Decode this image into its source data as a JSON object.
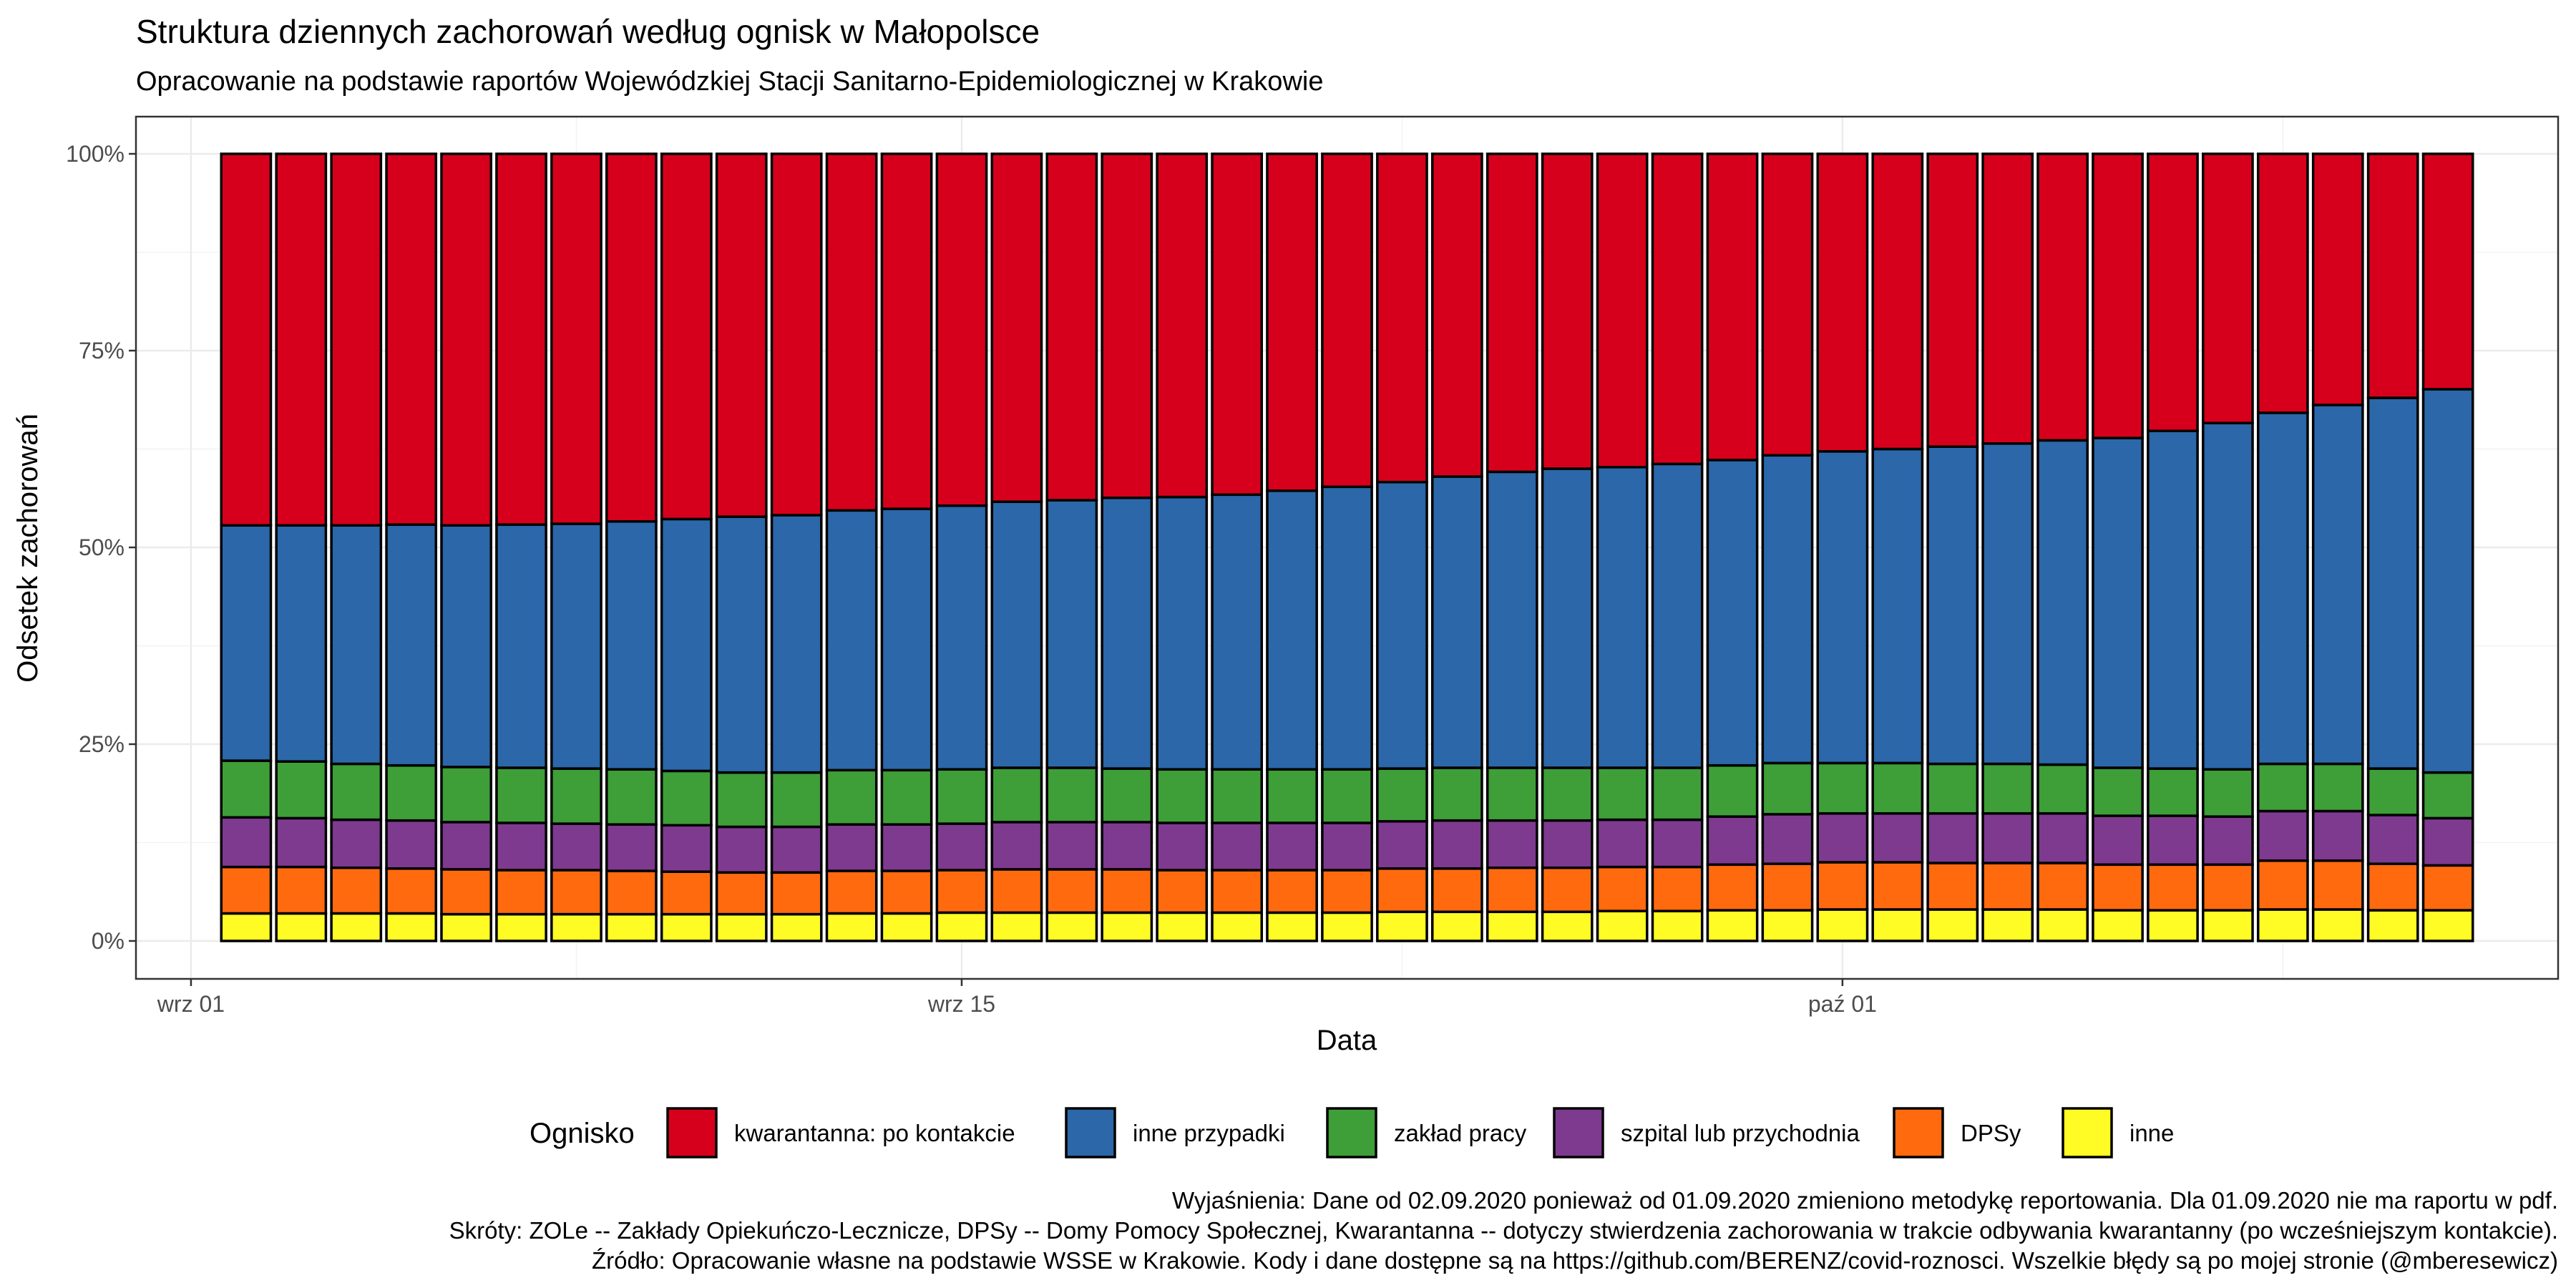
{
  "chart_data": {
    "type": "bar",
    "stacked": true,
    "title": "Struktura dziennych zachorowań według ognisk w Małopolsce",
    "subtitle": "Opracowanie na podstawie raportów Wojewódzkiej Stacji Sanitarno-Epidemiologicznej w Krakowie",
    "xlabel": "Data",
    "ylabel": "Odsetek zachorowań",
    "ylim": [
      0,
      100
    ],
    "y_ticks": [
      "0%",
      "25%",
      "50%",
      "75%",
      "100%"
    ],
    "x_ticks": [
      {
        "date": "2020-09-01",
        "label": "wrz 01"
      },
      {
        "date": "2020-09-15",
        "label": "wrz 15"
      },
      {
        "date": "2020-10-01",
        "label": "paź 01"
      }
    ],
    "x_range": [
      "2020-08-31",
      "2020-10-14"
    ],
    "grid": true,
    "legend": {
      "title": "Ognisko",
      "position": "bottom",
      "items": [
        {
          "key": "kwarantanna",
          "label": "kwarantanna: po kontakcie",
          "color": "#D7001C"
        },
        {
          "key": "inne_przypadki",
          "label": "inne przypadki",
          "color": "#2B67A9"
        },
        {
          "key": "zaklad_pracy",
          "label": "zakład pracy",
          "color": "#3E9E38"
        },
        {
          "key": "szpital",
          "label": "szpital lub przychodnia",
          "color": "#7E3A8F"
        },
        {
          "key": "dpsy",
          "label": "DPSy",
          "color": "#FF6A0E"
        },
        {
          "key": "inne",
          "label": "inne",
          "color": "#FFFB24"
        }
      ]
    },
    "stack_order": [
      "inne",
      "dpsy",
      "szpital",
      "zaklad_pracy",
      "inne_przypadki",
      "kwarantanna"
    ],
    "categories": [
      "2020-09-02",
      "2020-09-03",
      "2020-09-04",
      "2020-09-05",
      "2020-09-06",
      "2020-09-07",
      "2020-09-08",
      "2020-09-09",
      "2020-09-10",
      "2020-09-11",
      "2020-09-12",
      "2020-09-13",
      "2020-09-14",
      "2020-09-15",
      "2020-09-16",
      "2020-09-17",
      "2020-09-18",
      "2020-09-19",
      "2020-09-20",
      "2020-09-21",
      "2020-09-22",
      "2020-09-23",
      "2020-09-24",
      "2020-09-25",
      "2020-09-26",
      "2020-09-27",
      "2020-09-28",
      "2020-09-29",
      "2020-09-30",
      "2020-10-01",
      "2020-10-02",
      "2020-10-03",
      "2020-10-04",
      "2020-10-05",
      "2020-10-06",
      "2020-10-07",
      "2020-10-08",
      "2020-10-09",
      "2020-10-10",
      "2020-10-11",
      "2020-10-12"
    ],
    "series": [
      {
        "key": "inne",
        "name": "inne",
        "values": [
          3.5,
          3.5,
          3.5,
          3.5,
          3.4,
          3.4,
          3.4,
          3.4,
          3.4,
          3.4,
          3.4,
          3.5,
          3.5,
          3.6,
          3.6,
          3.6,
          3.6,
          3.6,
          3.6,
          3.6,
          3.6,
          3.7,
          3.7,
          3.7,
          3.7,
          3.8,
          3.8,
          3.9,
          3.9,
          4.0,
          4.0,
          4.0,
          4.0,
          4.0,
          3.9,
          3.9,
          3.9,
          4.0,
          4.0,
          3.9,
          3.9
        ]
      },
      {
        "key": "dpsy",
        "name": "DPSy",
        "values": [
          5.9,
          5.9,
          5.8,
          5.7,
          5.7,
          5.6,
          5.6,
          5.5,
          5.4,
          5.3,
          5.3,
          5.4,
          5.4,
          5.4,
          5.5,
          5.5,
          5.5,
          5.4,
          5.4,
          5.4,
          5.4,
          5.5,
          5.5,
          5.6,
          5.6,
          5.6,
          5.6,
          5.8,
          5.9,
          6.0,
          6.0,
          5.9,
          5.9,
          5.9,
          5.8,
          5.8,
          5.8,
          6.2,
          6.2,
          5.9,
          5.7
        ]
      },
      {
        "key": "szpital",
        "name": "szpital lub przychodnia",
        "values": [
          6.3,
          6.2,
          6.1,
          6.1,
          6.0,
          6.0,
          5.9,
          5.9,
          5.9,
          5.8,
          5.8,
          5.9,
          5.9,
          5.9,
          6.0,
          6.0,
          6.0,
          6.0,
          6.0,
          6.0,
          6.0,
          6.0,
          6.1,
          6.0,
          6.0,
          6.0,
          6.0,
          6.1,
          6.3,
          6.2,
          6.2,
          6.3,
          6.3,
          6.3,
          6.2,
          6.2,
          6.1,
          6.3,
          6.3,
          6.2,
          6.0
        ]
      },
      {
        "key": "zaklad_pracy",
        "name": "zakład pracy",
        "values": [
          7.2,
          7.2,
          7.1,
          7.0,
          7.0,
          7.0,
          7.0,
          7.0,
          6.9,
          6.9,
          6.9,
          6.9,
          6.9,
          6.9,
          6.9,
          6.9,
          6.8,
          6.8,
          6.8,
          6.8,
          6.8,
          6.7,
          6.7,
          6.7,
          6.7,
          6.6,
          6.6,
          6.5,
          6.5,
          6.4,
          6.4,
          6.3,
          6.3,
          6.2,
          6.1,
          6.0,
          6.0,
          6.0,
          6.0,
          5.9,
          5.8
        ]
      },
      {
        "key": "inne_przypadki",
        "name": "inne przypadki",
        "values": [
          29.9,
          30.0,
          30.3,
          30.6,
          30.7,
          30.9,
          31.1,
          31.5,
          32.0,
          32.5,
          32.7,
          33.0,
          33.2,
          33.5,
          33.8,
          34.0,
          34.4,
          34.6,
          34.9,
          35.4,
          35.9,
          36.4,
          37.0,
          37.6,
          38.0,
          38.2,
          38.6,
          38.8,
          39.1,
          39.6,
          39.9,
          40.3,
          40.7,
          41.2,
          41.9,
          42.9,
          44.0,
          44.6,
          45.6,
          47.1,
          48.7
        ]
      },
      {
        "key": "kwarantanna",
        "name": "kwarantanna: po kontakcie",
        "values": [
          47.2,
          47.2,
          47.2,
          47.1,
          47.2,
          47.1,
          47.0,
          46.7,
          46.4,
          46.1,
          45.9,
          45.3,
          45.1,
          44.7,
          44.2,
          44.0,
          43.7,
          43.6,
          43.3,
          42.8,
          42.3,
          41.7,
          41.0,
          40.4,
          40.0,
          39.8,
          39.4,
          38.9,
          38.3,
          37.8,
          37.5,
          37.2,
          36.8,
          36.4,
          36.1,
          35.2,
          34.2,
          32.9,
          31.9,
          31.0,
          29.9
        ]
      }
    ]
  },
  "caption": {
    "line1": "Wyjaśnienia: Dane od 02.09.2020 ponieważ od 01.09.2020 zmieniono metodykę reportowania. Dla 01.09.2020 nie ma raportu w pdf.",
    "line2": "Skróty: ZOLe -- Zakłady Opiekuńczo-Lecznicze, DPSy -- Domy Pomocy Społecznej, Kwarantanna -- dotyczy stwierdzenia zachorowania w trakcie odbywania kwarantanny (po wcześniejszym kontakcie).",
    "line3": "Źródło: Opracowanie własne na podstawie WSSE w Krakowie. Kody i dane dostępne są na https://github.com/BERENZ/covid-roznosci. Wszelkie błędy są po mojej stronie (@mberesewicz)"
  }
}
